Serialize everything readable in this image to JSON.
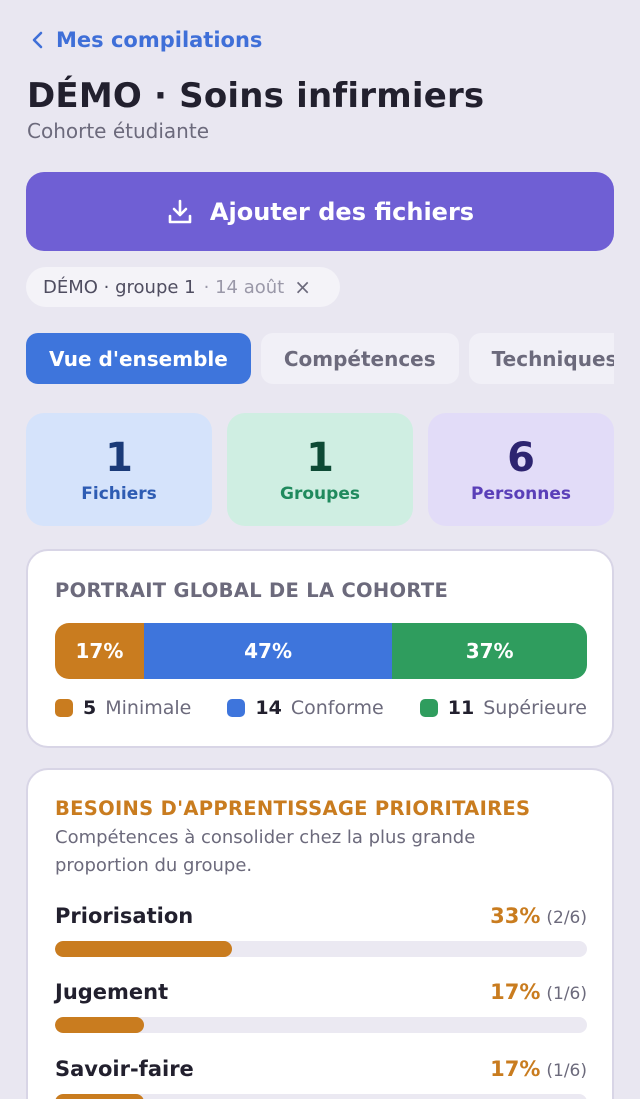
{
  "nav": {
    "back_label": "Mes compilations"
  },
  "header": {
    "title": "DÉMO · Soins infirmiers",
    "subtitle": "Cohorte étudiante"
  },
  "actions": {
    "add_files_label": "Ajouter des fichiers",
    "icon": "download-icon"
  },
  "filter_chip": {
    "label": "DÉMO · groupe 1",
    "date": "· 14 août",
    "remove": "×"
  },
  "tabs": [
    {
      "label": "Vue d'ensemble",
      "active": true
    },
    {
      "label": "Compétences",
      "active": false
    },
    {
      "label": "Techniques",
      "active": false
    }
  ],
  "stats": [
    {
      "value": "1",
      "label": "Fichiers"
    },
    {
      "value": "1",
      "label": "Groupes"
    },
    {
      "value": "6",
      "label": "Personnes"
    }
  ],
  "portrait": {
    "title": "PORTRAIT GLOBAL DE LA COHORTE",
    "segments": [
      {
        "pct_label": "17%",
        "share": 0.167,
        "color": "#c97c1f"
      },
      {
        "pct_label": "47%",
        "share": 0.467,
        "color": "#3e75dc"
      },
      {
        "pct_label": "37%",
        "share": 0.366,
        "color": "#2f9d5e"
      }
    ],
    "legend": [
      {
        "count": "5",
        "label": "Minimale",
        "color": "#c97c1f"
      },
      {
        "count": "14",
        "label": "Conforme",
        "color": "#3e75dc"
      },
      {
        "count": "11",
        "label": "Supérieure",
        "color": "#2f9d5e"
      }
    ]
  },
  "needs": {
    "title": "BESOINS D'APPRENTISSAGE PRIORITAIRES",
    "title_color": "#c97c1f",
    "description": "Compétences à consolider chez la plus grande proportion du groupe.",
    "items": [
      {
        "name": "Priorisation",
        "pct": "33%",
        "fraction": "(2/6)",
        "value": 0.333
      },
      {
        "name": "Jugement",
        "pct": "17%",
        "fraction": "(1/6)",
        "value": 0.167
      },
      {
        "name": "Savoir-faire",
        "pct": "17%",
        "fraction": "(1/6)",
        "value": 0.167
      }
    ]
  }
}
